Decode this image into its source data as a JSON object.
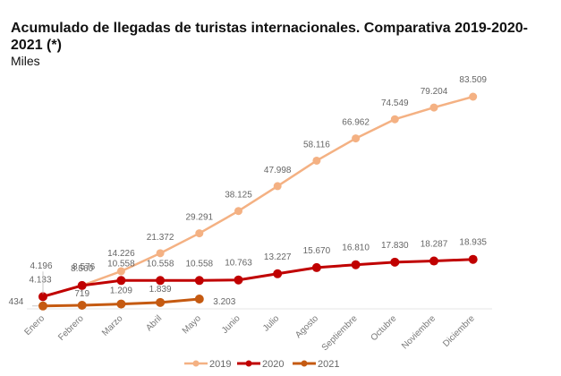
{
  "title": "Acumulado de llegadas de turistas internacionales. Comparativa 2019-2020-2021 (*)",
  "subtitle": "Miles",
  "chart_data": {
    "type": "line",
    "title": "Acumulado de llegadas de turistas internacionales. Comparativa 2019-2020-2021 (*)",
    "subtitle": "Miles",
    "xlabel": "",
    "ylabel": "Miles",
    "ylim": [
      0,
      83509
    ],
    "grid": false,
    "legend_position": "bottom",
    "categories": [
      "Enero",
      "Febrero",
      "Marzo",
      "Abril",
      "Mayo",
      "Junio",
      "Julio",
      "Agosto",
      "Septiembre",
      "Octubre",
      "Noviembre",
      "Diciembre"
    ],
    "series": [
      {
        "name": "2019",
        "color": "#f4b183",
        "values": [
          4196,
          8576,
          14226,
          21372,
          29291,
          38125,
          47998,
          58116,
          66962,
          74549,
          79204,
          83509
        ],
        "labels": [
          "4.196",
          "8.576",
          "14.226",
          "21.372",
          "29.291",
          "38.125",
          "47.998",
          "58.116",
          "66.962",
          "74.549",
          "79.204",
          "83.509"
        ]
      },
      {
        "name": "2020",
        "color": "#c00000",
        "values": [
          4133,
          8560,
          10558,
          10558,
          10558,
          10763,
          13227,
          15670,
          16810,
          17830,
          18287,
          18935
        ],
        "labels": [
          "4.133",
          "8.560",
          "10.558",
          "10.558",
          "10.558",
          "10.763",
          "13.227",
          "15.670",
          "16.810",
          "17.830",
          "18.287",
          "18.935"
        ]
      },
      {
        "name": "2021",
        "color": "#c55a11",
        "values": [
          434,
          719,
          1209,
          1839,
          3203
        ],
        "labels": [
          "434",
          "719",
          "1.209",
          "1.839",
          "3.203"
        ]
      }
    ]
  }
}
